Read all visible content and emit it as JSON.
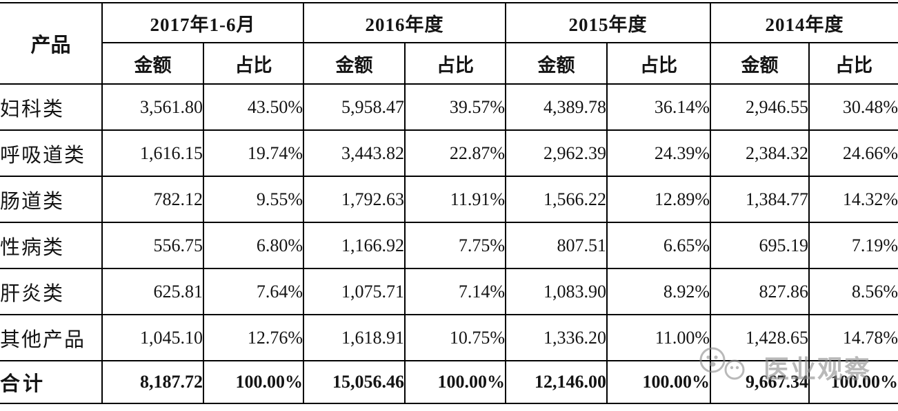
{
  "page": {
    "background_color": "#ffffff",
    "border_color": "#000000",
    "text_color": "#141414",
    "watermark_color": "#8f8f8f"
  },
  "watermark": {
    "icon": "wechat-smiley-logo-icon",
    "text": "医业观察"
  },
  "table": {
    "product_header": "产品",
    "period_groups": [
      {
        "label": "2017年1-6月"
      },
      {
        "label": "2016年度"
      },
      {
        "label": "2015年度"
      },
      {
        "label": "2014年度"
      }
    ],
    "sub_headers": {
      "amount": "金额",
      "ratio": "占比"
    },
    "rows": [
      {
        "label": "妇科类",
        "cells": [
          "3,561.80",
          "43.50%",
          "5,958.47",
          "39.57%",
          "4,389.78",
          "36.14%",
          "2,946.55",
          "30.48%"
        ]
      },
      {
        "label": "呼吸道类",
        "cells": [
          "1,616.15",
          "19.74%",
          "3,443.82",
          "22.87%",
          "2,962.39",
          "24.39%",
          "2,384.32",
          "24.66%"
        ]
      },
      {
        "label": "肠道类",
        "cells": [
          "782.12",
          "9.55%",
          "1,792.63",
          "11.91%",
          "1,566.22",
          "12.89%",
          "1,384.77",
          "14.32%"
        ]
      },
      {
        "label": "性病类",
        "cells": [
          "556.75",
          "6.80%",
          "1,166.92",
          "7.75%",
          "807.51",
          "6.65%",
          "695.19",
          "7.19%"
        ]
      },
      {
        "label": "肝炎类",
        "cells": [
          "625.81",
          "7.64%",
          "1,075.71",
          "7.14%",
          "1,083.90",
          "8.92%",
          "827.86",
          "8.56%"
        ]
      },
      {
        "label": "其他产品",
        "cells": [
          "1,045.10",
          "12.76%",
          "1,618.91",
          "10.75%",
          "1,336.20",
          "11.00%",
          "1,428.65",
          "14.78%"
        ]
      }
    ],
    "total_row": {
      "label": "合计",
      "cells": [
        "8,187.72",
        "100.00%",
        "15,056.46",
        "100.00%",
        "12,146.00",
        "100.00%",
        "9,667.34",
        "100.00%"
      ]
    }
  },
  "chart_data": {
    "type": "table",
    "title": "产品销售收入构成（金额与占比）",
    "columns": [
      "产品",
      "2017年1-6月 金额",
      "2017年1-6月 占比",
      "2016年度 金额",
      "2016年度 占比",
      "2015年度 金额",
      "2015年度 占比",
      "2014年度 金额",
      "2014年度 占比"
    ],
    "rows": [
      [
        "妇科类",
        3561.8,
        "43.50%",
        5958.47,
        "39.57%",
        4389.78,
        "36.14%",
        2946.55,
        "30.48%"
      ],
      [
        "呼吸道类",
        1616.15,
        "19.74%",
        3443.82,
        "22.87%",
        2962.39,
        "24.39%",
        2384.32,
        "24.66%"
      ],
      [
        "肠道类",
        782.12,
        "9.55%",
        1792.63,
        "11.91%",
        1566.22,
        "12.89%",
        1384.77,
        "14.32%"
      ],
      [
        "性病类",
        556.75,
        "6.80%",
        1166.92,
        "7.75%",
        807.51,
        "6.65%",
        695.19,
        "7.19%"
      ],
      [
        "肝炎类",
        625.81,
        "7.64%",
        1075.71,
        "7.14%",
        1083.9,
        "8.92%",
        827.86,
        "8.56%"
      ],
      [
        "其他产品",
        1045.1,
        "12.76%",
        1618.91,
        "10.75%",
        1336.2,
        "11.00%",
        1428.65,
        "14.78%"
      ],
      [
        "合计",
        8187.72,
        "100.00%",
        15056.46,
        "100.00%",
        12146.0,
        "100.00%",
        9667.34,
        "100.00%"
      ]
    ]
  }
}
